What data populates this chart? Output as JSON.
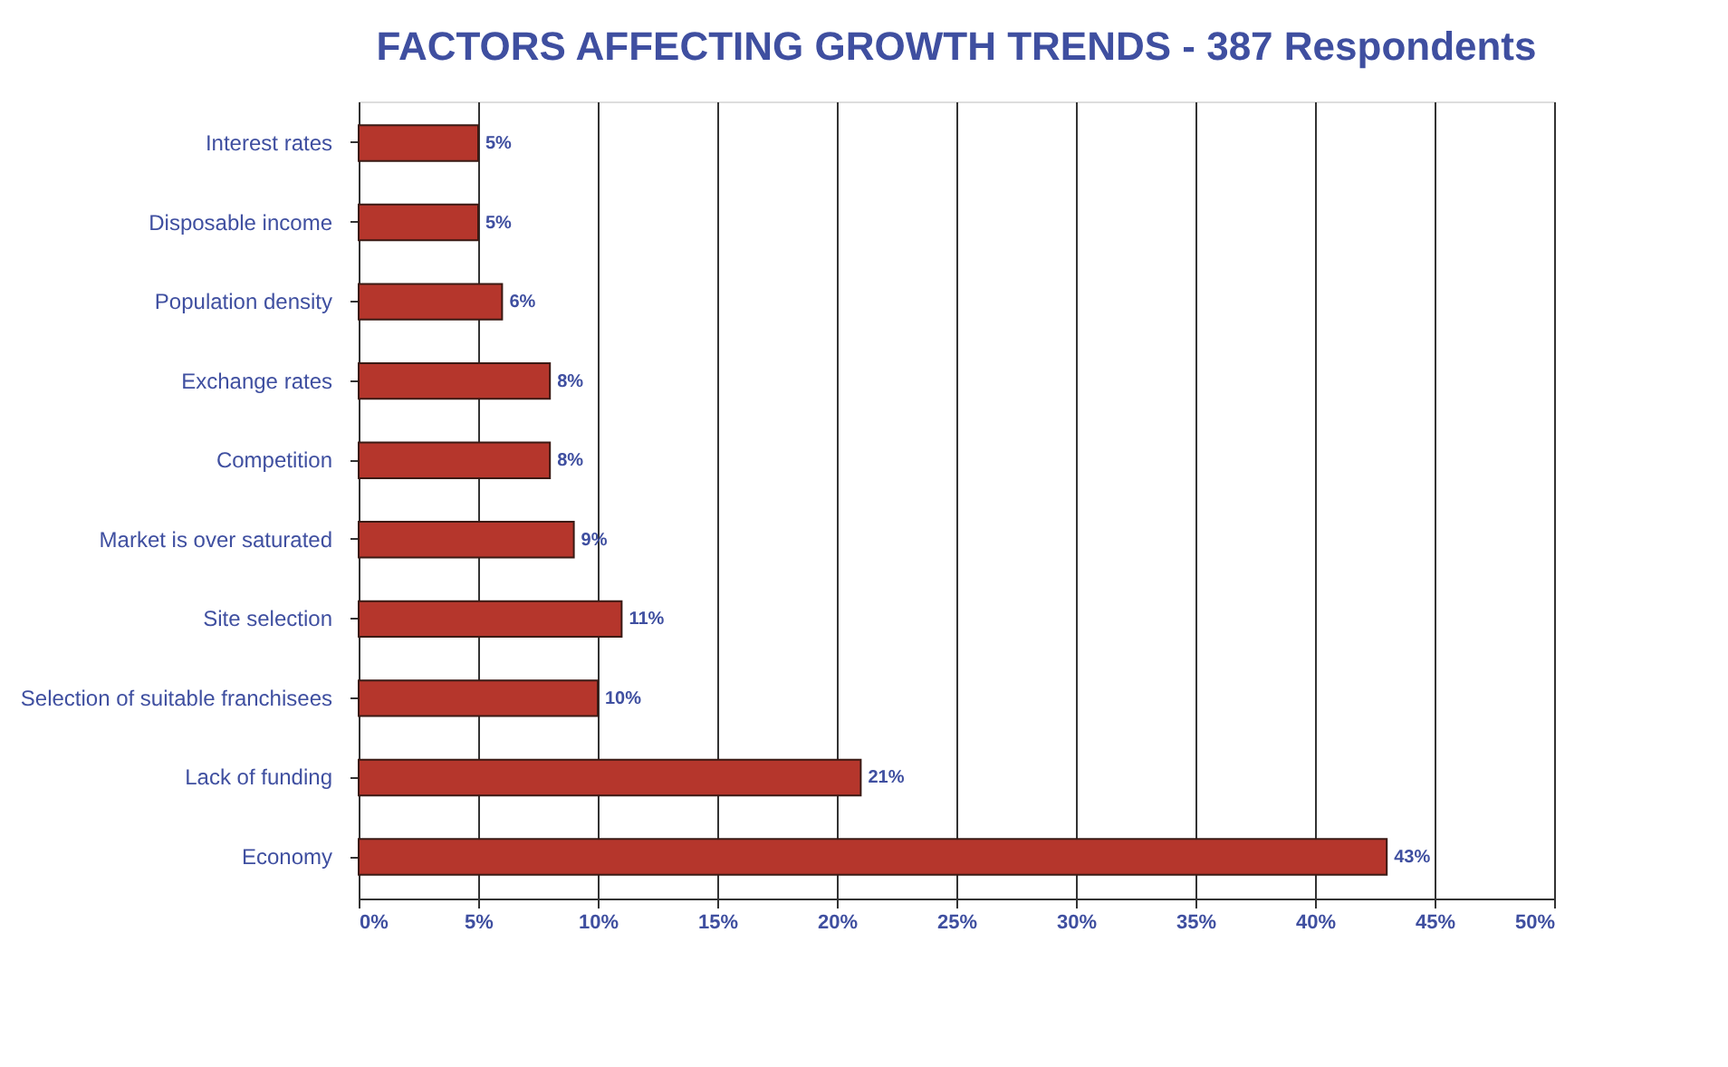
{
  "chart_data": {
    "type": "bar",
    "orientation": "horizontal",
    "title": "FACTORS AFFECTING GROWTH TRENDS - 387 Respondents",
    "categories": [
      "Interest rates",
      "Disposable income",
      "Population density",
      "Exchange rates",
      "Competition",
      "Market is over saturated",
      "Site selection",
      "Selection of suitable franchisees",
      "Lack of funding",
      "Economy"
    ],
    "values": [
      5,
      5,
      6,
      8,
      8,
      9,
      11,
      10,
      21,
      43
    ],
    "value_labels": [
      "5%",
      "5%",
      "6%",
      "8%",
      "8%",
      "9%",
      "11%",
      "10%",
      "21%",
      "43%"
    ],
    "color": "#b5362c",
    "xlim": [
      0,
      50
    ],
    "xticks": [
      {
        "value": 0,
        "label": "0%"
      },
      {
        "value": 5,
        "label": "5%"
      },
      {
        "value": 10,
        "label": "10%"
      },
      {
        "value": 15,
        "label": "15%"
      },
      {
        "value": 20,
        "label": "20%"
      },
      {
        "value": 25,
        "label": "25%"
      },
      {
        "value": 30,
        "label": "30%"
      },
      {
        "value": 35,
        "label": "35%"
      },
      {
        "value": 40,
        "label": "40%"
      },
      {
        "value": 45,
        "label": "45%"
      },
      {
        "value": 50,
        "label": "50%"
      }
    ],
    "grid": "x"
  }
}
